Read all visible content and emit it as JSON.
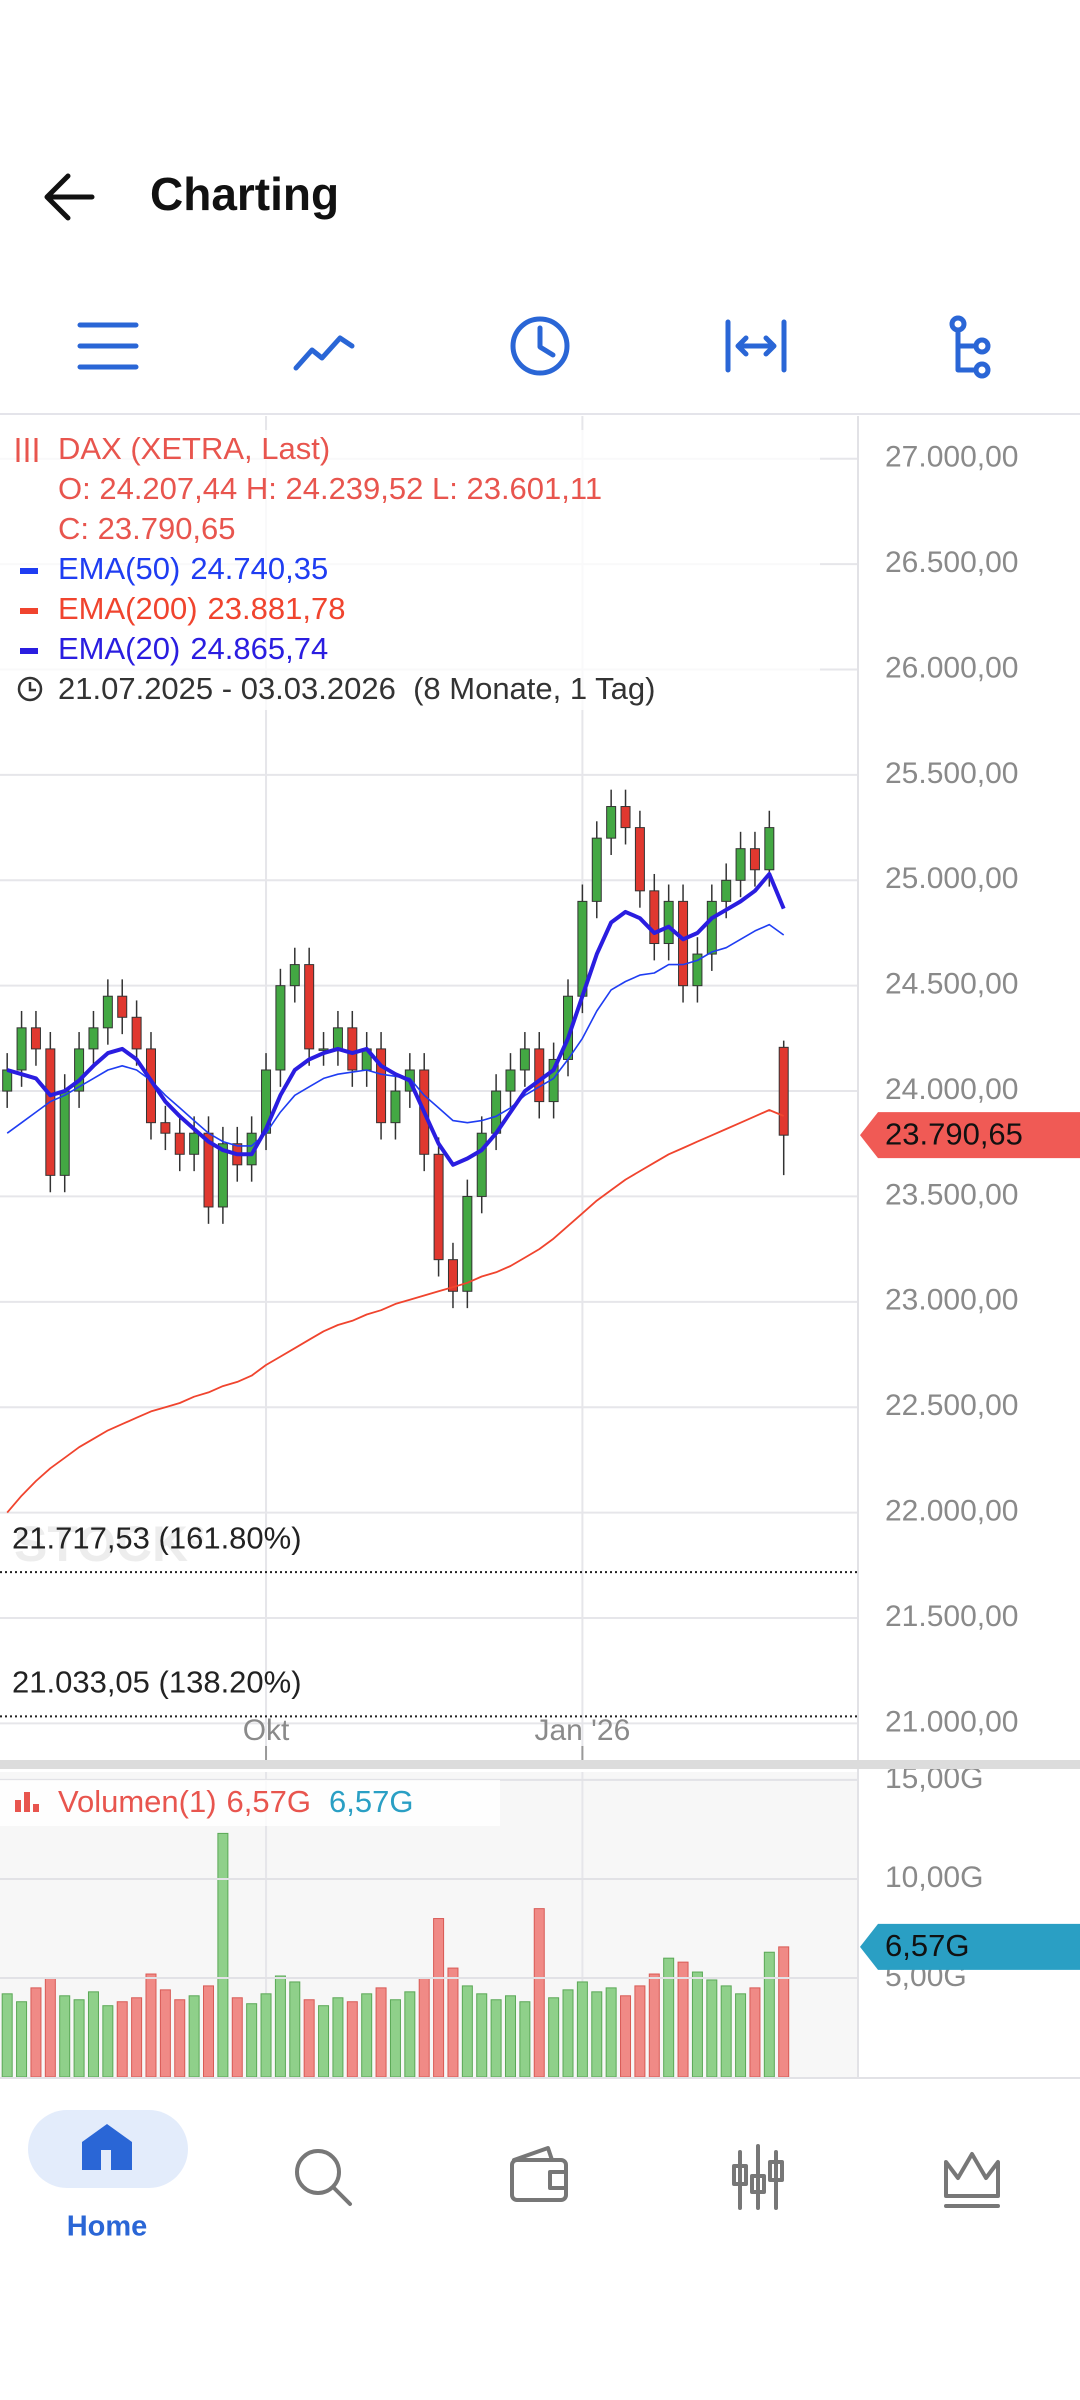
{
  "header": {
    "title": "Charting"
  },
  "nav": {
    "active": "Home"
  },
  "chart_data": {
    "type": "candlestick",
    "legend": {
      "instrument": "DAX (XETRA, Last)",
      "ohlc": "O: 24.207,44 H: 24.239,52 L: 23.601,11",
      "close": "C: 23.790,65",
      "range": "21.07.2025 - 03.03.2026  (8 Monate, 1 Tag)"
    },
    "watermark": "STOCK³",
    "categories": [
      null,
      null,
      null,
      null,
      null,
      null,
      null,
      null,
      null,
      null,
      null,
      null,
      null,
      null,
      null,
      null,
      null,
      null,
      "Okt",
      null,
      null,
      null,
      null,
      null,
      null,
      null,
      null,
      null,
      null,
      null,
      null,
      null,
      null,
      null,
      null,
      null,
      null,
      null,
      null,
      null,
      "Jan '26",
      null,
      null,
      null,
      null,
      null,
      null,
      null,
      null,
      null,
      null,
      null,
      null,
      null,
      null
    ],
    "open": [
      24000,
      24100,
      24300,
      24200,
      23600,
      24000,
      24200,
      24300,
      24450,
      24350,
      24200,
      23850,
      23800,
      23700,
      23800,
      23450,
      23750,
      23650,
      23800,
      24100,
      24500,
      24600,
      24200,
      24200,
      24300,
      24100,
      24200,
      23850,
      24000,
      24100,
      23700,
      23200,
      23050,
      23500,
      23800,
      24000,
      24100,
      24200,
      23950,
      24150,
      24450,
      24900,
      25200,
      25350,
      25250,
      24950,
      24700,
      24900,
      24500,
      24650,
      24900,
      25000,
      25150,
      25050,
      24207.44
    ],
    "high": [
      24180,
      24380,
      24380,
      24280,
      24080,
      24280,
      24380,
      24530,
      24530,
      24430,
      24280,
      23930,
      23880,
      23880,
      23880,
      23830,
      23830,
      23880,
      24180,
      24580,
      24680,
      24680,
      24280,
      24380,
      24380,
      24280,
      24280,
      24080,
      24180,
      24180,
      23780,
      23280,
      23580,
      23880,
      24080,
      24180,
      24280,
      24280,
      24230,
      24530,
      24980,
      25280,
      25430,
      25430,
      25330,
      25030,
      24980,
      24980,
      24730,
      24980,
      25080,
      25230,
      25230,
      25330,
      24239.52
    ],
    "low": [
      23920,
      24020,
      24120,
      23520,
      23520,
      23920,
      24120,
      24220,
      24270,
      24120,
      23770,
      23720,
      23620,
      23620,
      23370,
      23370,
      23570,
      23570,
      23720,
      24020,
      24420,
      24120,
      24120,
      24120,
      24020,
      24020,
      23770,
      23770,
      23920,
      23620,
      23120,
      22970,
      22970,
      23420,
      23720,
      23920,
      24020,
      23870,
      23870,
      24070,
      24370,
      24820,
      25120,
      25170,
      24870,
      24620,
      24620,
      24420,
      24420,
      24570,
      24820,
      24920,
      24970,
      24970,
      23601.11
    ],
    "close": [
      24100,
      24300,
      24200,
      23600,
      24000,
      24200,
      24300,
      24450,
      24350,
      24200,
      23850,
      23800,
      23700,
      23800,
      23450,
      23750,
      23650,
      23800,
      24100,
      24500,
      24600,
      24200,
      24200,
      24300,
      24100,
      24200,
      23850,
      24000,
      24100,
      23700,
      23200,
      23050,
      23500,
      23800,
      24000,
      24100,
      24200,
      23950,
      24150,
      24450,
      24900,
      25200,
      25350,
      25250,
      24950,
      24700,
      24900,
      24500,
      24650,
      24900,
      25000,
      25150,
      25050,
      25250,
      23790.65
    ],
    "close_label": "23.790,65",
    "up_color": "#43a843",
    "down_color": "#e0382f",
    "ylim": [
      20826,
      27203
    ],
    "yticks": [
      {
        "value": 21000,
        "label": "21.000,00"
      },
      {
        "value": 21500,
        "label": "21.500,00"
      },
      {
        "value": 22000,
        "label": "22.000,00"
      },
      {
        "value": 22500,
        "label": "22.500,00"
      },
      {
        "value": 23000,
        "label": "23.000,00"
      },
      {
        "value": 23500,
        "label": "23.500,00"
      },
      {
        "value": 24000,
        "label": "24.000,00"
      },
      {
        "value": 24500,
        "label": "24.500,00"
      },
      {
        "value": 25000,
        "label": "25.000,00"
      },
      {
        "value": 25500,
        "label": "25.500,00"
      },
      {
        "value": 26000,
        "label": "26.000,00"
      },
      {
        "value": 26500,
        "label": "26.500,00"
      },
      {
        "value": 27000,
        "label": "27.000,00"
      }
    ],
    "grid": true,
    "overlays": [
      {
        "name": "EMA(50)",
        "last_label": "24.740,35",
        "color": "#1f3df2",
        "width": 1.6,
        "values": [
          23800,
          23850,
          23900,
          23950,
          23980,
          24020,
          24060,
          24100,
          24120,
          24100,
          24050,
          23980,
          23920,
          23860,
          23800,
          23760,
          23740,
          23740,
          23800,
          23900,
          23980,
          24020,
          24060,
          24080,
          24090,
          24100,
          24080,
          24070,
          24060,
          23980,
          23920,
          23860,
          23850,
          23860,
          23880,
          23920,
          23980,
          24020,
          24060,
          24150,
          24250,
          24380,
          24480,
          24520,
          24550,
          24560,
          24600,
          24600,
          24620,
          24660,
          24680,
          24720,
          24760,
          24790,
          24740.35
        ]
      },
      {
        "name": "EMA(200)",
        "last_label": "23.881,78",
        "color": "#f0442e",
        "width": 1.8,
        "values": [
          22000,
          22080,
          22150,
          22210,
          22260,
          22310,
          22350,
          22390,
          22420,
          22450,
          22480,
          22500,
          22520,
          22550,
          22570,
          22600,
          22620,
          22650,
          22700,
          22740,
          22780,
          22820,
          22860,
          22890,
          22910,
          22940,
          22960,
          22990,
          23010,
          23030,
          23050,
          23070,
          23090,
          23120,
          23140,
          23170,
          23210,
          23250,
          23300,
          23360,
          23420,
          23480,
          23530,
          23580,
          23620,
          23660,
          23700,
          23730,
          23760,
          23790,
          23820,
          23850,
          23880,
          23910,
          23881.78
        ]
      },
      {
        "name": "EMA(20)",
        "last_label": "24.865,74",
        "color": "#2a1de0",
        "width": 4,
        "values": [
          24100,
          24080,
          24060,
          23980,
          24000,
          24050,
          24120,
          24180,
          24200,
          24150,
          24050,
          23950,
          23880,
          23820,
          23760,
          23720,
          23700,
          23700,
          23820,
          23980,
          24100,
          24150,
          24180,
          24200,
          24180,
          24200,
          24120,
          24080,
          24050,
          23900,
          23750,
          23650,
          23680,
          23720,
          23800,
          23900,
          24000,
          24050,
          24100,
          24250,
          24450,
          24650,
          24800,
          24850,
          24820,
          24750,
          24780,
          24720,
          24750,
          24820,
          24860,
          24900,
          24950,
          25030,
          24865.74
        ]
      }
    ],
    "fib_levels": [
      {
        "value": 21717.53,
        "label": "21.717,53 (161.80%)"
      },
      {
        "value": 21033.05,
        "label": "21.033,05 (138.20%)"
      }
    ],
    "volume": {
      "title": "Volumen(1)",
      "labels": [
        "6,57G",
        "6,57G"
      ],
      "value_label": "6,57G",
      "values": [
        4.2,
        3.8,
        4.5,
        5.0,
        4.1,
        3.9,
        4.3,
        3.6,
        3.8,
        4.0,
        5.2,
        4.4,
        3.9,
        4.1,
        4.6,
        12.3,
        4.0,
        3.7,
        4.2,
        5.1,
        4.8,
        3.9,
        3.6,
        4.0,
        3.8,
        4.2,
        4.5,
        3.9,
        4.3,
        5.0,
        8.0,
        5.5,
        4.6,
        4.2,
        3.9,
        4.1,
        3.8,
        8.5,
        4.0,
        4.4,
        4.8,
        4.3,
        4.5,
        4.1,
        4.6,
        5.2,
        6.0,
        5.8,
        5.3,
        4.9,
        4.6,
        4.2,
        4.5,
        6.3,
        6.57
      ],
      "up_color": "#8fd08a",
      "down_color": "#f08a86",
      "tag_color": "#2a9fc4",
      "ylim": [
        0,
        15.4
      ],
      "yticks": [
        {
          "value": 5,
          "label": "5,00G"
        },
        {
          "value": 10,
          "label": "10,00G"
        },
        {
          "value": 15,
          "label": "15,00G"
        }
      ]
    }
  }
}
